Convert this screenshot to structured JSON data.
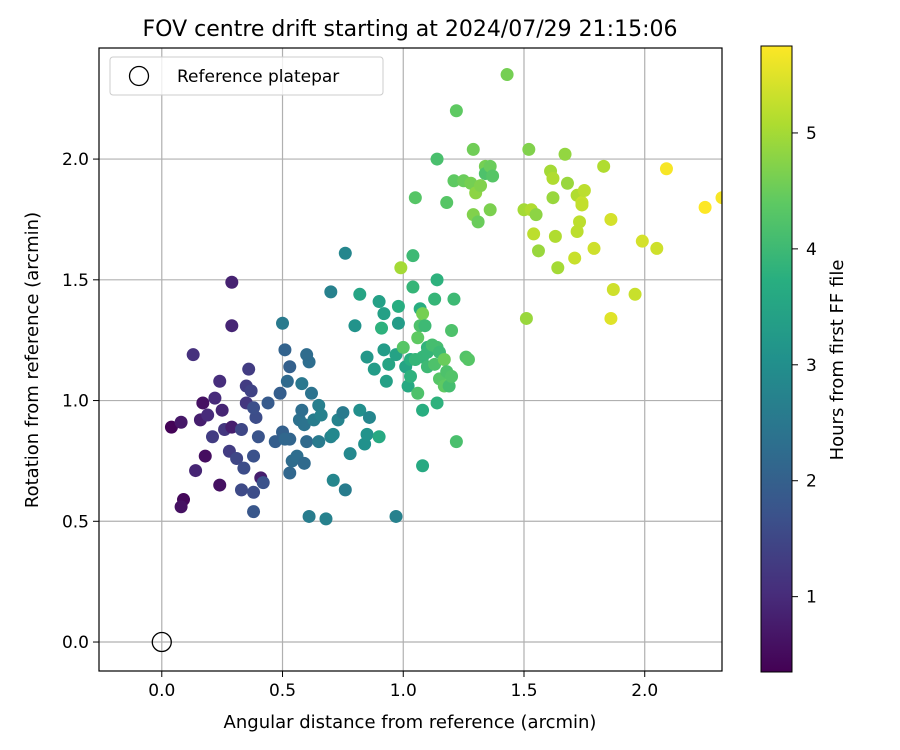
{
  "chart_data": {
    "type": "scatter",
    "title": "FOV centre drift starting at 2024/07/29 21:15:06",
    "xlabel": "Angular distance from reference (arcmin)",
    "ylabel": "Rotation from reference (arcmin)",
    "xlim": [
      -0.26,
      2.32
    ],
    "ylim": [
      -0.12,
      2.46
    ],
    "xticks": [
      "0.0",
      "0.5",
      "1.0",
      "1.5",
      "2.0"
    ],
    "yticks": [
      "0.0",
      "0.5",
      "1.0",
      "1.5",
      "2.0"
    ],
    "grid": true,
    "legend": {
      "placement": "top-left",
      "entries": [
        "Reference platepar"
      ]
    },
    "reference_point": {
      "x": 0.0,
      "y": 0.0,
      "style": "hollow-circle"
    },
    "colorbar": {
      "label": "Hours from first FF file",
      "colormap": "viridis",
      "range": [
        0.35,
        5.75
      ],
      "ticks": [
        "1",
        "2",
        "3",
        "4",
        "5"
      ]
    },
    "series": [
      {
        "color_by": "hours",
        "points": [
          [
            0.04,
            0.89,
            0.4
          ],
          [
            0.09,
            0.59,
            0.45
          ],
          [
            0.08,
            0.56,
            0.6
          ],
          [
            0.08,
            0.91,
            0.7
          ],
          [
            0.14,
            0.71,
            0.9
          ],
          [
            0.13,
            1.19,
            1.1
          ],
          [
            0.17,
            0.99,
            0.6
          ],
          [
            0.18,
            0.77,
            0.55
          ],
          [
            0.24,
            0.65,
            0.6
          ],
          [
            0.16,
            0.92,
            0.8
          ],
          [
            0.19,
            0.94,
            1.0
          ],
          [
            0.22,
            1.01,
            1.0
          ],
          [
            0.24,
            1.08,
            1.05
          ],
          [
            0.25,
            0.96,
            0.9
          ],
          [
            0.21,
            0.85,
            1.3
          ],
          [
            0.26,
            0.88,
            1.2
          ],
          [
            0.28,
            0.79,
            1.3
          ],
          [
            0.29,
            0.89,
            0.8
          ],
          [
            0.29,
            1.31,
            0.9
          ],
          [
            0.29,
            1.49,
            0.85
          ],
          [
            0.31,
            0.76,
            1.5
          ],
          [
            0.33,
            0.63,
            1.55
          ],
          [
            0.34,
            0.72,
            1.6
          ],
          [
            0.33,
            0.88,
            1.5
          ],
          [
            0.35,
            0.99,
            1.2
          ],
          [
            0.35,
            1.06,
            1.3
          ],
          [
            0.37,
            1.04,
            1.4
          ],
          [
            0.36,
            1.13,
            1.3
          ],
          [
            0.38,
            0.62,
            1.6
          ],
          [
            0.38,
            0.77,
            1.7
          ],
          [
            0.39,
            0.93,
            1.6
          ],
          [
            0.4,
            0.85,
            1.75
          ],
          [
            0.41,
            0.68,
            0.8
          ],
          [
            0.38,
            0.97,
            1.65
          ],
          [
            0.42,
            0.66,
            1.7
          ],
          [
            0.38,
            0.54,
            1.8
          ],
          [
            0.44,
            0.99,
            1.9
          ],
          [
            0.47,
            0.83,
            1.95
          ],
          [
            0.5,
            0.87,
            2.0
          ],
          [
            0.49,
            1.03,
            1.95
          ],
          [
            0.51,
            1.21,
            2.05
          ],
          [
            0.53,
            1.14,
            2.0
          ],
          [
            0.52,
            1.08,
            2.2
          ],
          [
            0.53,
            0.84,
            2.1
          ],
          [
            0.51,
            0.84,
            2.15
          ],
          [
            0.53,
            0.7,
            2.15
          ],
          [
            0.54,
            0.75,
            2.25
          ],
          [
            0.56,
            0.77,
            2.3
          ],
          [
            0.57,
            0.92,
            2.35
          ],
          [
            0.59,
            0.9,
            2.4
          ],
          [
            0.58,
            0.96,
            2.3
          ],
          [
            0.59,
            0.74,
            2.2
          ],
          [
            0.6,
            0.83,
            2.2
          ],
          [
            0.61,
            1.16,
            2.3
          ],
          [
            0.6,
            1.19,
            2.25
          ],
          [
            0.62,
            1.03,
            2.4
          ],
          [
            0.5,
            1.32,
            2.55
          ],
          [
            0.58,
            1.07,
            2.5
          ],
          [
            0.61,
            0.52,
            2.6
          ],
          [
            0.63,
            0.92,
            2.6
          ],
          [
            0.65,
            0.98,
            2.65
          ],
          [
            0.65,
            0.83,
            2.55
          ],
          [
            0.66,
            0.94,
            2.7
          ],
          [
            0.68,
            0.51,
            2.7
          ],
          [
            0.7,
            0.85,
            2.75
          ],
          [
            0.71,
            0.67,
            2.8
          ],
          [
            0.71,
            0.86,
            2.85
          ],
          [
            0.73,
            0.92,
            2.75
          ],
          [
            0.75,
            0.95,
            2.55
          ],
          [
            0.76,
            0.63,
            2.6
          ],
          [
            0.7,
            1.45,
            2.7
          ],
          [
            0.76,
            1.61,
            2.8
          ],
          [
            0.78,
            0.78,
            2.85
          ],
          [
            0.8,
            1.31,
            3.1
          ],
          [
            0.82,
            0.96,
            3.0
          ],
          [
            0.84,
            0.82,
            3.05
          ],
          [
            0.85,
            0.86,
            3.1
          ],
          [
            0.86,
            0.93,
            2.8
          ],
          [
            0.82,
            1.44,
            3.5
          ],
          [
            0.85,
            1.18,
            3.2
          ],
          [
            0.88,
            1.13,
            3.3
          ],
          [
            0.9,
            0.85,
            3.6
          ],
          [
            0.9,
            1.41,
            3.4
          ],
          [
            0.91,
            1.3,
            3.8
          ],
          [
            0.92,
            1.36,
            3.4
          ],
          [
            0.92,
            1.21,
            3.3
          ],
          [
            0.93,
            1.08,
            3.4
          ],
          [
            0.94,
            1.15,
            3.5
          ],
          [
            0.97,
            0.52,
            2.7
          ],
          [
            0.97,
            1.19,
            3.45
          ],
          [
            0.98,
            1.32,
            3.3
          ],
          [
            0.98,
            1.39,
            3.7
          ],
          [
            0.99,
            1.55,
            5.0
          ],
          [
            1.0,
            1.22,
            4.3
          ],
          [
            1.01,
            1.14,
            3.5
          ],
          [
            1.02,
            1.06,
            3.6
          ],
          [
            1.03,
            1.1,
            3.8
          ],
          [
            1.03,
            1.17,
            3.7
          ],
          [
            1.04,
            1.47,
            3.9
          ],
          [
            1.04,
            1.6,
            4.0
          ],
          [
            1.05,
            1.84,
            4.3
          ],
          [
            1.05,
            1.17,
            3.9
          ],
          [
            1.06,
            1.03,
            4.2
          ],
          [
            1.06,
            1.26,
            4.4
          ],
          [
            1.07,
            1.31,
            4.2
          ],
          [
            1.07,
            1.38,
            3.7
          ],
          [
            1.08,
            1.36,
            4.6
          ],
          [
            1.08,
            1.18,
            3.9
          ],
          [
            1.09,
            1.31,
            4.0
          ],
          [
            1.1,
            1.22,
            3.85
          ],
          [
            1.1,
            1.2,
            3.9
          ],
          [
            1.08,
            0.96,
            3.7
          ],
          [
            1.08,
            0.73,
            3.6
          ],
          [
            1.1,
            1.14,
            4.0
          ],
          [
            1.12,
            1.23,
            4.1
          ],
          [
            1.13,
            1.42,
            3.9
          ],
          [
            1.14,
            1.5,
            3.8
          ],
          [
            1.13,
            1.15,
            4.2
          ],
          [
            1.14,
            1.22,
            4.1
          ],
          [
            1.15,
            1.2,
            4.0
          ],
          [
            1.15,
            1.09,
            4.3
          ],
          [
            1.17,
            1.06,
            4.4
          ],
          [
            1.14,
            0.99,
            3.8
          ],
          [
            1.17,
            1.17,
            4.5
          ],
          [
            1.18,
            1.12,
            4.2
          ],
          [
            1.19,
            1.06,
            4.1
          ],
          [
            1.2,
            1.1,
            4.25
          ],
          [
            1.2,
            1.29,
            4.2
          ],
          [
            1.21,
            1.42,
            4.0
          ],
          [
            1.22,
            0.83,
            4.15
          ],
          [
            1.26,
            1.18,
            4.25
          ],
          [
            1.27,
            1.17,
            4.3
          ],
          [
            1.14,
            2.0,
            4.15
          ],
          [
            1.18,
            1.82,
            4.3
          ],
          [
            1.21,
            1.91,
            4.4
          ],
          [
            1.22,
            2.2,
            4.4
          ],
          [
            1.25,
            1.91,
            4.5
          ],
          [
            1.28,
            1.9,
            4.6
          ],
          [
            1.29,
            1.77,
            4.7
          ],
          [
            1.29,
            2.04,
            4.55
          ],
          [
            1.3,
            1.86,
            4.8
          ],
          [
            1.31,
            1.74,
            4.5
          ],
          [
            1.32,
            1.89,
            4.7
          ],
          [
            1.34,
            1.97,
            4.6
          ],
          [
            1.34,
            1.94,
            4.2
          ],
          [
            1.36,
            1.79,
            4.65
          ],
          [
            1.36,
            1.97,
            4.5
          ],
          [
            1.37,
            1.93,
            4.3
          ],
          [
            1.43,
            2.35,
            4.6
          ],
          [
            1.5,
            1.79,
            5.0
          ],
          [
            1.51,
            1.34,
            4.9
          ],
          [
            1.52,
            2.04,
            4.7
          ],
          [
            1.53,
            1.79,
            5.1
          ],
          [
            1.54,
            1.69,
            5.2
          ],
          [
            1.55,
            1.77,
            4.8
          ],
          [
            1.56,
            1.62,
            4.9
          ],
          [
            1.61,
            1.95,
            5.0
          ],
          [
            1.62,
            1.92,
            5.1
          ],
          [
            1.62,
            1.84,
            4.9
          ],
          [
            1.63,
            1.68,
            5.1
          ],
          [
            1.64,
            1.55,
            5.0
          ],
          [
            1.67,
            2.02,
            4.85
          ],
          [
            1.68,
            1.9,
            4.9
          ],
          [
            1.71,
            1.59,
            5.3
          ],
          [
            1.72,
            1.7,
            5.2
          ],
          [
            1.72,
            1.85,
            5.1
          ],
          [
            1.73,
            1.74,
            5.2
          ],
          [
            1.74,
            1.82,
            5.3
          ],
          [
            1.74,
            1.81,
            5.25
          ],
          [
            1.75,
            1.87,
            5.2
          ],
          [
            1.79,
            1.63,
            5.35
          ],
          [
            1.83,
            1.97,
            5.1
          ],
          [
            1.86,
            1.75,
            5.4
          ],
          [
            1.86,
            1.34,
            5.5
          ],
          [
            1.87,
            1.46,
            5.35
          ],
          [
            1.96,
            1.44,
            5.3
          ],
          [
            1.99,
            1.66,
            5.4
          ],
          [
            2.05,
            1.63,
            5.35
          ],
          [
            2.09,
            1.96,
            5.7
          ],
          [
            2.25,
            1.8,
            5.75
          ],
          [
            2.32,
            1.84,
            5.7
          ]
        ]
      }
    ]
  }
}
